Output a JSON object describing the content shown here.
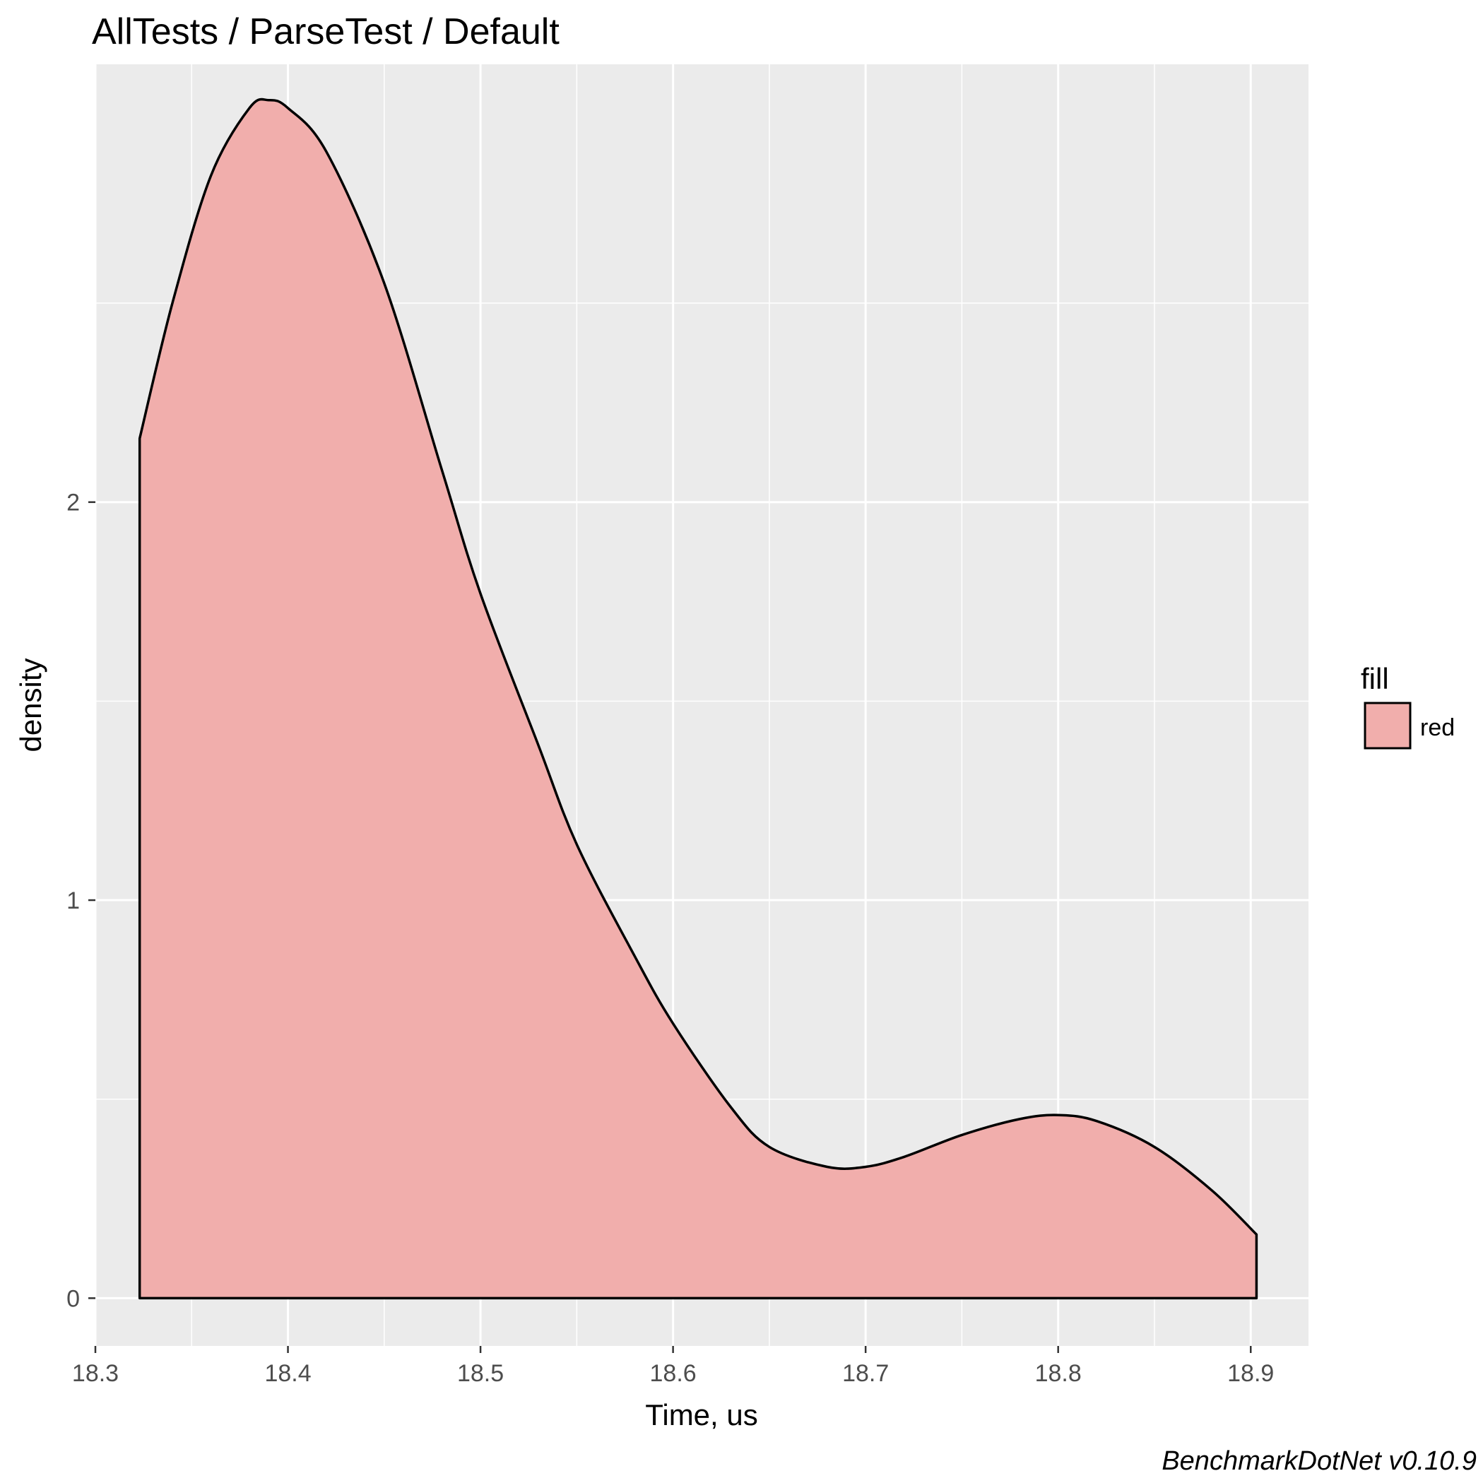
{
  "chart_data": {
    "type": "area",
    "title": "AllTests / ParseTest / Default",
    "xlabel": "Time, us",
    "ylabel": "density",
    "caption": "BenchmarkDotNet v0.10.9",
    "xlim": [
      18.3,
      18.93
    ],
    "ylim": [
      -0.12,
      3.1
    ],
    "x_ticks": [
      18.3,
      18.4,
      18.5,
      18.6,
      18.7,
      18.8,
      18.9
    ],
    "x_tick_labels": [
      "18.3",
      "18.4",
      "18.5",
      "18.6",
      "18.7",
      "18.8",
      "18.9"
    ],
    "y_ticks": [
      0,
      1,
      2
    ],
    "y_tick_labels": [
      "0",
      "1",
      "2"
    ],
    "grid": true,
    "legend": {
      "title": "fill",
      "position": "right",
      "entries": [
        "red"
      ]
    },
    "colors": {
      "fill": "#f1aeac",
      "outline": "#000000",
      "panel": "#ebebeb",
      "grid": "#ffffff"
    },
    "series": [
      {
        "name": "red",
        "x": [
          18.323,
          18.34,
          18.36,
          18.38,
          18.39,
          18.4,
          18.42,
          18.45,
          18.48,
          18.5,
          18.53,
          18.55,
          18.58,
          18.6,
          18.63,
          18.65,
          18.68,
          18.7,
          18.72,
          18.75,
          18.78,
          18.8,
          18.82,
          18.85,
          18.88,
          18.903
        ],
        "y": [
          2.16,
          2.5,
          2.82,
          2.99,
          3.01,
          2.99,
          2.88,
          2.55,
          2.08,
          1.77,
          1.39,
          1.14,
          0.86,
          0.69,
          0.48,
          0.38,
          0.33,
          0.33,
          0.355,
          0.41,
          0.45,
          0.46,
          0.445,
          0.38,
          0.27,
          0.16
        ]
      }
    ]
  }
}
